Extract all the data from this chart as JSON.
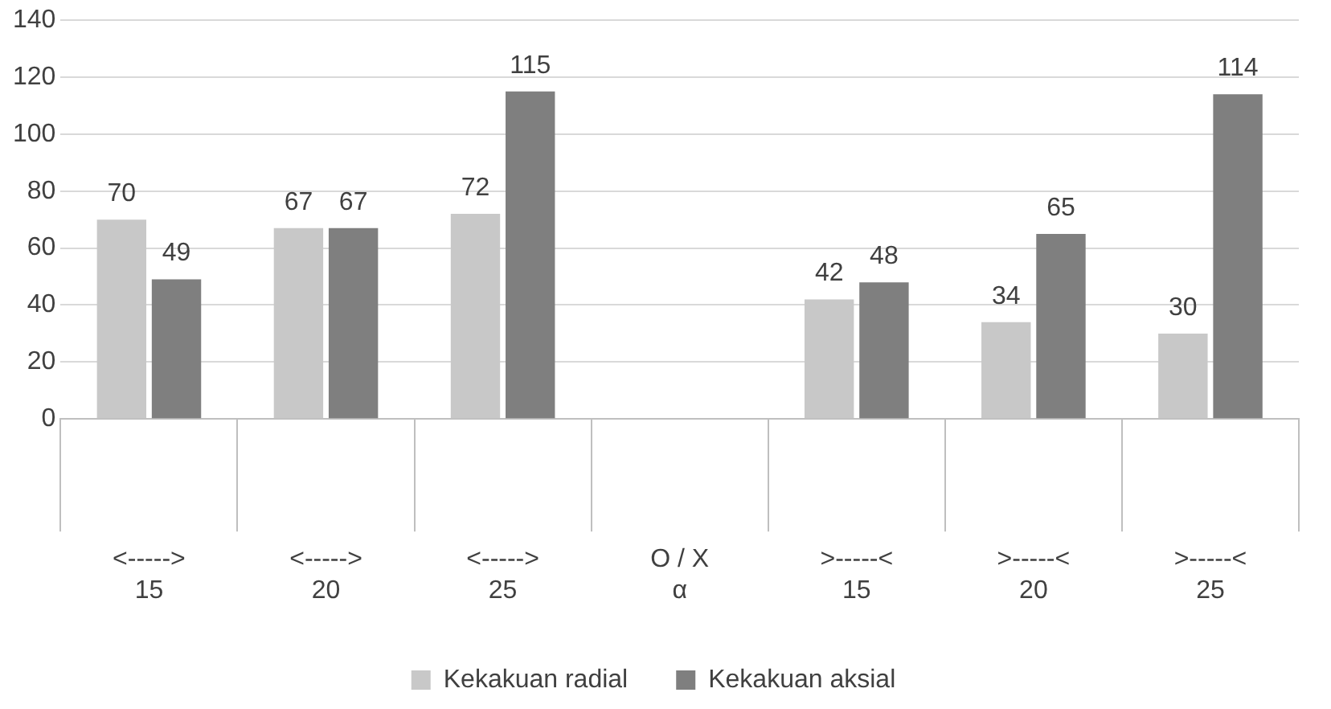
{
  "chart_data": {
    "type": "bar",
    "categories": [
      "<----->\n15",
      "<----->\n20",
      "<----->\n25",
      "O / X\nα",
      ">-----<\n15",
      ">-----<\n20",
      ">-----<\n25"
    ],
    "series": [
      {
        "name": "Kekakuan radial",
        "color": "#c8c8c8",
        "values": [
          70,
          67,
          72,
          null,
          42,
          34,
          30
        ]
      },
      {
        "name": "Kekakuan aksial",
        "color": "#7f7f7f",
        "values": [
          49,
          67,
          115,
          null,
          48,
          65,
          114
        ]
      }
    ],
    "ylim": [
      0,
      140
    ],
    "yticks": [
      0,
      20,
      40,
      60,
      80,
      100,
      120,
      140
    ],
    "grid": true,
    "legend": "bottom",
    "data_labels": true
  }
}
